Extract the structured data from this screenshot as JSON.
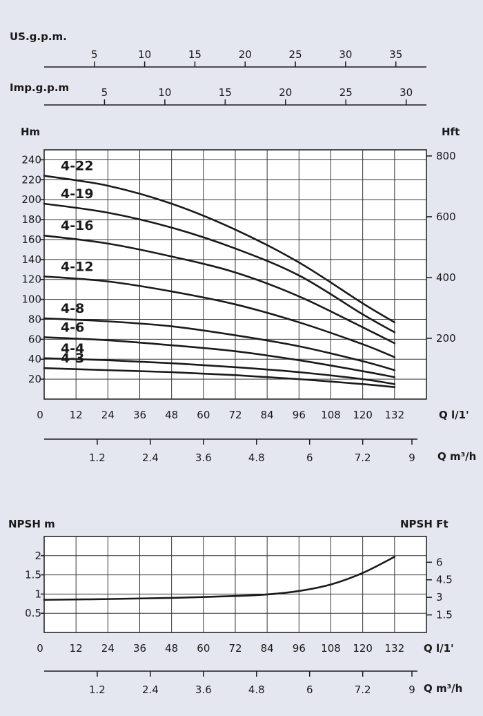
{
  "scales": {
    "us_gpm": {
      "label": "US.g.p.m.",
      "ticks": [
        "5",
        "10",
        "15",
        "20",
        "25",
        "30",
        "35"
      ],
      "values": [
        5,
        10,
        15,
        20,
        25,
        30,
        35
      ]
    },
    "imp_gpm": {
      "label": "Imp.g.p.m",
      "ticks": [
        "5",
        "10",
        "15",
        "20",
        "25",
        "30"
      ],
      "values": [
        5,
        10,
        15,
        20,
        25,
        30
      ]
    }
  },
  "chart_data": [
    {
      "type": "line",
      "ylabel_left": "Hm",
      "ylabel_right": "Hft",
      "xlabel": "Q l/1'",
      "xlabel_secondary": "Q m³/h",
      "xlim": [
        0,
        144
      ],
      "ylim": [
        0,
        250
      ],
      "x_ticks": [
        "0",
        "12",
        "24",
        "36",
        "48",
        "60",
        "72",
        "84",
        "96",
        "108",
        "120",
        "132"
      ],
      "x_tick_values": [
        0,
        12,
        24,
        36,
        48,
        60,
        72,
        84,
        96,
        108,
        120,
        132
      ],
      "y_ticks": [
        "20",
        "40",
        "60",
        "80",
        "100",
        "120",
        "140",
        "160",
        "180",
        "200",
        "220",
        "240"
      ],
      "y_tick_values": [
        20,
        40,
        60,
        80,
        100,
        120,
        140,
        160,
        180,
        200,
        220,
        240
      ],
      "right_ticks": [
        "200",
        "400",
        "600",
        "800"
      ],
      "right_tick_values": [
        200,
        400,
        600,
        800
      ],
      "m3h_ticks": [
        "1.2",
        "2.4",
        "3.6",
        "4.8",
        "6",
        "7.2",
        "9"
      ],
      "m3h_tick_values": [
        1.2,
        2.4,
        3.6,
        4.8,
        6,
        7.2,
        9
      ],
      "grid": true,
      "series": [
        {
          "name": "4-22",
          "x": [
            0,
            24,
            48,
            72,
            96,
            120,
            132
          ],
          "values": [
            224,
            214,
            196,
            170,
            137,
            96,
            77
          ]
        },
        {
          "name": "4-19",
          "x": [
            0,
            24,
            48,
            72,
            96,
            120,
            132
          ],
          "values": [
            196,
            187,
            172,
            151,
            124,
            85,
            67
          ]
        },
        {
          "name": "4-16",
          "x": [
            0,
            24,
            48,
            72,
            96,
            120,
            132
          ],
          "values": [
            164,
            156,
            143,
            127,
            103,
            72,
            56
          ]
        },
        {
          "name": "4-12",
          "x": [
            0,
            24,
            48,
            72,
            96,
            120,
            132
          ],
          "values": [
            123,
            118,
            108,
            95,
            77,
            55,
            42
          ]
        },
        {
          "name": "4-8",
          "x": [
            0,
            24,
            48,
            72,
            96,
            120,
            132
          ],
          "values": [
            81,
            78,
            73,
            64,
            53,
            38,
            29
          ]
        },
        {
          "name": "4-6",
          "x": [
            0,
            24,
            48,
            72,
            96,
            120,
            132
          ],
          "values": [
            62,
            59,
            54,
            48,
            39,
            28,
            22
          ]
        },
        {
          "name": "4-4",
          "x": [
            0,
            24,
            48,
            72,
            96,
            120,
            132
          ],
          "values": [
            41,
            39,
            36,
            32,
            27,
            20,
            15
          ]
        },
        {
          "name": "4-3",
          "x": [
            0,
            24,
            48,
            72,
            96,
            120,
            132
          ],
          "values": [
            31,
            29,
            27,
            24,
            20,
            15,
            12
          ]
        }
      ]
    },
    {
      "type": "line",
      "ylabel_left": "NPSH m",
      "ylabel_right": "NPSH  Ft",
      "xlabel": "Q l/1'",
      "xlabel_secondary": "Q m³/h",
      "xlim": [
        0,
        144
      ],
      "ylim": [
        0,
        2.5
      ],
      "x_ticks": [
        "0",
        "12",
        "24",
        "36",
        "48",
        "60",
        "72",
        "84",
        "96",
        "108",
        "120",
        "132"
      ],
      "x_tick_values": [
        0,
        12,
        24,
        36,
        48,
        60,
        72,
        84,
        96,
        108,
        120,
        132
      ],
      "y_ticks": [
        "0.5",
        "1",
        "1.5",
        "2"
      ],
      "y_tick_values": [
        0.5,
        1,
        1.5,
        2
      ],
      "right_ticks": [
        "1.5",
        "3",
        "4.5",
        "6"
      ],
      "right_tick_values": [
        1.5,
        3,
        4.5,
        6
      ],
      "m3h_ticks": [
        "1.2",
        "2.4",
        "3.6",
        "4.8",
        "6",
        "7.2",
        "9"
      ],
      "m3h_tick_values": [
        1.2,
        2.4,
        3.6,
        4.8,
        6,
        7.2,
        9
      ],
      "grid": true,
      "series": [
        {
          "name": "",
          "x": [
            0,
            24,
            48,
            72,
            84,
            96,
            108,
            120,
            132
          ],
          "values": [
            0.85,
            0.87,
            0.9,
            0.95,
            0.99,
            1.08,
            1.25,
            1.55,
            1.97
          ]
        }
      ]
    }
  ]
}
